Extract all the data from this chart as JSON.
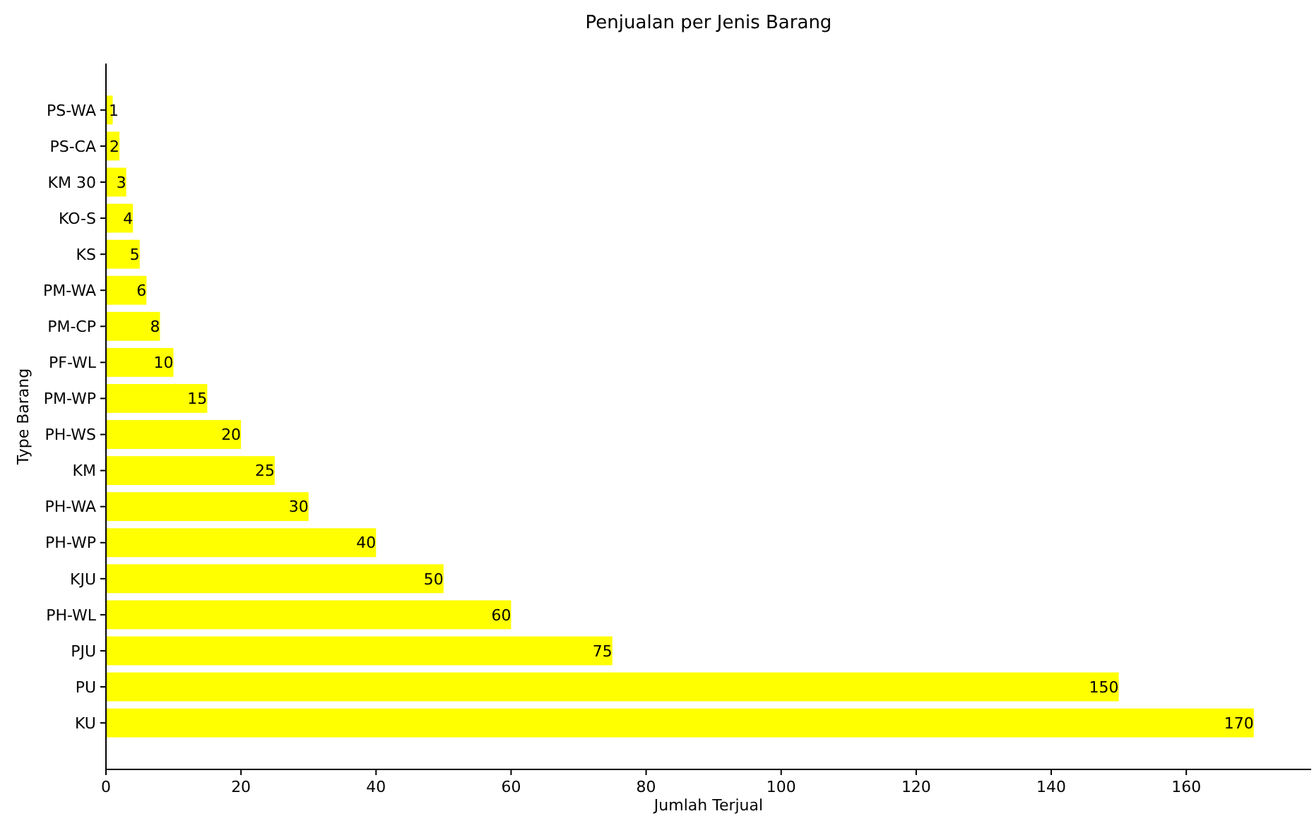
{
  "chart_data": {
    "type": "bar",
    "orientation": "horizontal",
    "title": "Penjualan per Jenis Barang",
    "xlabel": "Jumlah Terjual",
    "ylabel": "Type Barang",
    "categories": [
      "PS-WA",
      "PS-CA",
      "KM 30",
      "KO-S",
      "KS",
      "PM-WA",
      "PM-CP",
      "PF-WL",
      "PM-WP",
      "PH-WS",
      "KM",
      "PH-WA",
      "PH-WP",
      "KJU",
      "PH-WL",
      "PJU",
      "PU",
      "KU"
    ],
    "values": [
      1,
      2,
      3,
      4,
      5,
      6,
      8,
      10,
      15,
      20,
      25,
      30,
      40,
      50,
      60,
      75,
      150,
      170
    ],
    "color": "#ffff00",
    "data_labels": true,
    "grid": false,
    "xlim": [
      0,
      178.5
    ],
    "xticks": [
      0,
      20,
      40,
      60,
      80,
      100,
      120,
      140,
      160
    ]
  }
}
